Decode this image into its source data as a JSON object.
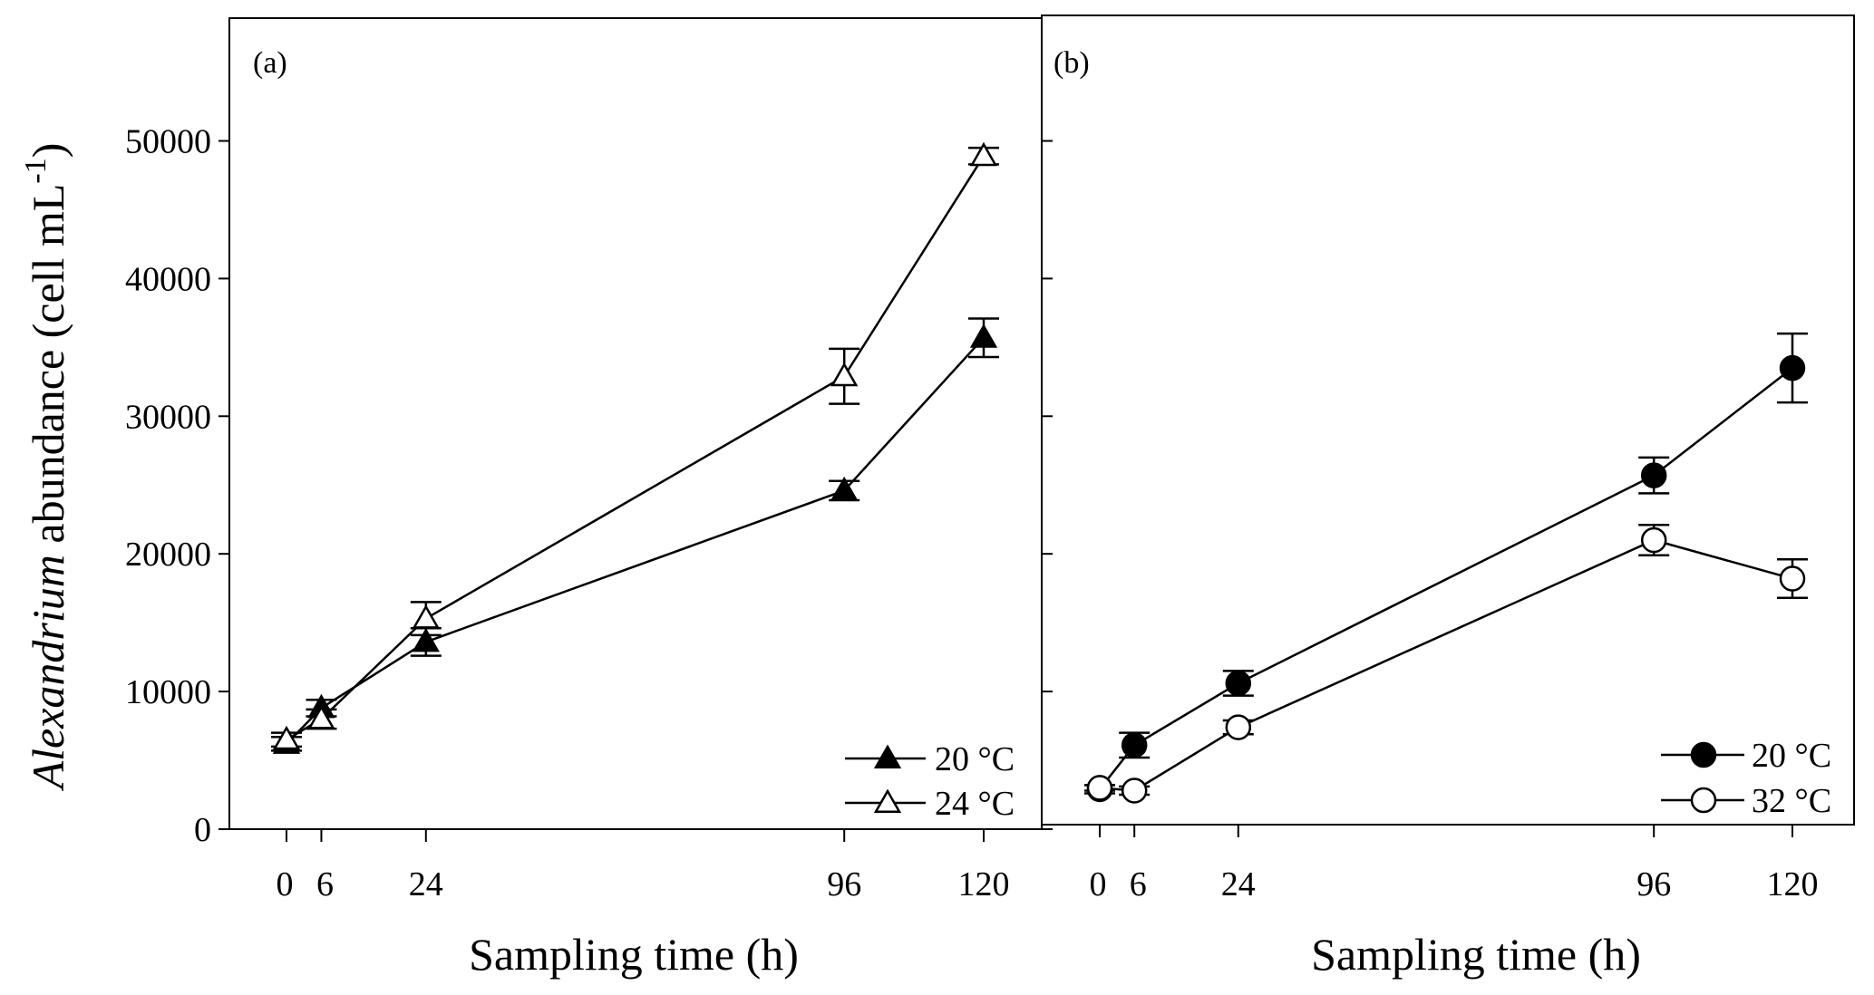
{
  "chart_data": [
    {
      "type": "line",
      "panel_label": "(a)",
      "xlabel": "Sampling time (h)",
      "ylabel": "Alexandrium abundance (cell mL-1)",
      "ylabel_parts": {
        "italic": "Alexandrium",
        "rest": " abundance (cell mL",
        "sup": "-1",
        "close": ")"
      },
      "x_ticks": [
        0,
        6,
        24,
        96,
        120
      ],
      "x_tick_labels": [
        "0",
        "6",
        "24",
        "96",
        "120"
      ],
      "y_ticks": [
        0,
        10000,
        20000,
        30000,
        40000,
        50000
      ],
      "y_tick_labels": [
        "0",
        "10000",
        "20000",
        "30000",
        "40000",
        "50000"
      ],
      "ylim": [
        0,
        59000
      ],
      "xlim": [
        -18,
        132
      ],
      "grid": false,
      "legend_position": "bottom-right",
      "series": [
        {
          "name": "20 °C",
          "marker": "triangle-filled",
          "x": [
            0,
            6,
            24,
            96,
            120
          ],
          "y": [
            6200,
            8800,
            13600,
            24600,
            35700
          ],
          "err": [
            500,
            600,
            1000,
            700,
            1400
          ]
        },
        {
          "name": "24 °C",
          "marker": "triangle-open",
          "x": [
            0,
            6,
            24,
            96,
            120
          ],
          "y": [
            6500,
            8000,
            15300,
            32900,
            48900
          ],
          "err": [
            500,
            700,
            1200,
            2000,
            600
          ]
        }
      ]
    },
    {
      "type": "line",
      "panel_label": "(b)",
      "xlabel": "Sampling time (h)",
      "x_ticks": [
        0,
        6,
        24,
        96,
        120
      ],
      "x_tick_labels": [
        "0",
        "6",
        "24",
        "96",
        "120"
      ],
      "y_ticks": [
        0,
        10000,
        20000,
        30000,
        40000,
        50000
      ],
      "ylim": [
        0,
        59000
      ],
      "xlim": [
        -18,
        132
      ],
      "grid": false,
      "legend_position": "bottom-right",
      "series": [
        {
          "name": "20 °C",
          "marker": "circle-filled",
          "x": [
            0,
            6,
            24,
            96,
            120
          ],
          "y": [
            2900,
            6100,
            10600,
            25700,
            33500
          ],
          "err": [
            300,
            900,
            900,
            1300,
            2500
          ]
        },
        {
          "name": "32 °C",
          "marker": "circle-open",
          "x": [
            0,
            6,
            24,
            96,
            120
          ],
          "y": [
            3000,
            2800,
            7400,
            21000,
            18200
          ],
          "err": [
            200,
            300,
            500,
            1100,
            1400
          ]
        }
      ]
    }
  ]
}
